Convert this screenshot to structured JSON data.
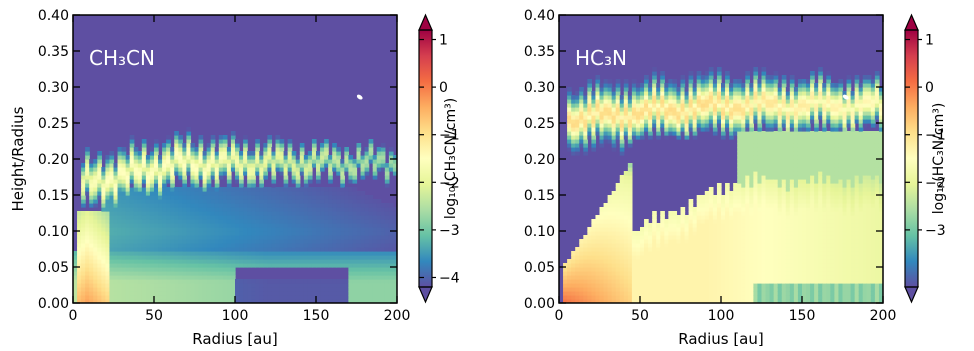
{
  "chart_data": [
    {
      "type": "heatmap",
      "panel_label": "CH₃CN",
      "xlabel": "Radius [au]",
      "ylabel": "Height/Radius",
      "xlim": [
        0,
        200
      ],
      "ylim": [
        0,
        0.4
      ],
      "x_ticks": [
        "0",
        "50",
        "100",
        "150",
        "200"
      ],
      "y_ticks": [
        "0.00",
        "0.05",
        "0.10",
        "0.15",
        "0.20",
        "0.25",
        "0.30",
        "0.35",
        "0.40"
      ],
      "colorbar": {
        "label": "log₁₀(CH₃CN/cm³)",
        "range": [
          -4.2,
          1.2
        ],
        "ticks": [
          "1",
          "0",
          "−1",
          "−2",
          "−3",
          "−4"
        ],
        "tick_values": [
          1,
          0,
          -1,
          -2,
          -3,
          -4
        ],
        "colormap": "Spectral_r",
        "extend": "both"
      },
      "background_value": -4.2,
      "features": [
        {
          "name": "inner-hot-core",
          "x_range": [
            2,
            20
          ],
          "z_max": 0.12,
          "peak_log": -0.3
        },
        {
          "name": "molecular-layer",
          "x_range": [
            5,
            200
          ],
          "z_center_at_x20": 0.17,
          "z_center_at_x200": 0.2,
          "peak_log": -1.6
        },
        {
          "name": "midplane-layer",
          "x_range": [
            0,
            200
          ],
          "z_max": 0.06,
          "peak_log": -2.4
        }
      ],
      "grid": false,
      "legend": "none"
    },
    {
      "type": "heatmap",
      "panel_label": "HC₃N",
      "xlabel": "Radius [au]",
      "ylabel": "",
      "xlim": [
        0,
        200
      ],
      "ylim": [
        0,
        0.4
      ],
      "x_ticks": [
        "0",
        "50",
        "100",
        "150",
        "200"
      ],
      "y_ticks": [
        "0.00",
        "0.05",
        "0.10",
        "0.15",
        "0.20",
        "0.25",
        "0.30",
        "0.35",
        "0.40"
      ],
      "colorbar": {
        "label": "log₁₀(HC₃N/cm³)",
        "range": [
          -4.2,
          1.2
        ],
        "ticks": [
          "1",
          "0",
          "−1",
          "−2",
          "−3"
        ],
        "tick_values": [
          1,
          0,
          -1,
          -2,
          -3
        ],
        "colormap": "Spectral_r",
        "extend": "both"
      },
      "background_value": -4.2,
      "features": [
        {
          "name": "inner-hot-core",
          "x_range": [
            2,
            40
          ],
          "z_max": 0.2,
          "peak_log": 0.1
        },
        {
          "name": "upper-molecular-layer",
          "x_range": [
            5,
            200
          ],
          "z_center_at_x20": 0.26,
          "z_center_at_x200": 0.28,
          "peak_log": -0.9
        },
        {
          "name": "lower-molecular-layer",
          "x_range": [
            5,
            200
          ],
          "z_max": 0.17,
          "peak_log": -1.4
        }
      ],
      "grid": false,
      "legend": "none"
    }
  ]
}
